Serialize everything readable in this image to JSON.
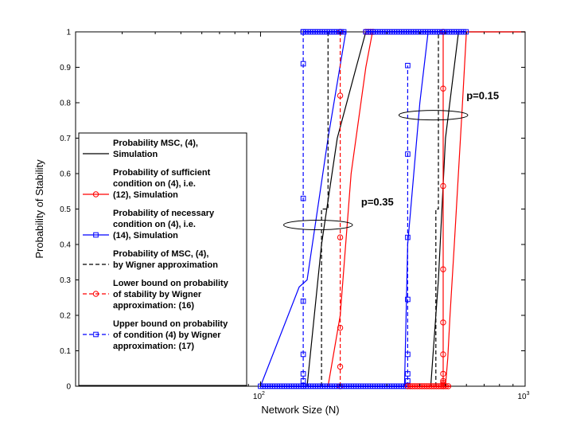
{
  "chart_data": {
    "type": "line",
    "xscale": "log",
    "xlim": [
      20,
      1000
    ],
    "ylim": [
      0,
      1
    ],
    "xlabel": "Network Size (N)",
    "ylabel": "Probability of Stability",
    "grid": false,
    "legend_position": "left",
    "x_ticks": [
      {
        "value": 100,
        "base": "10",
        "exp": "2"
      },
      {
        "value": 1000,
        "base": "10",
        "exp": "3"
      }
    ],
    "y_ticks": [
      {
        "value": 0,
        "label": "0"
      },
      {
        "value": 0.1,
        "label": "0.1"
      },
      {
        "value": 0.2,
        "label": "0.2"
      },
      {
        "value": 0.3,
        "label": "0.3"
      },
      {
        "value": 0.4,
        "label": "0.4"
      },
      {
        "value": 0.5,
        "label": "0.5"
      },
      {
        "value": 0.6,
        "label": "0.6"
      },
      {
        "value": 0.7,
        "label": "0.7"
      },
      {
        "value": 0.8,
        "label": "0.8"
      },
      {
        "value": 0.9,
        "label": "0.9"
      },
      {
        "value": 1,
        "label": "1"
      }
    ],
    "annotations": [
      {
        "text": "p=0.35",
        "x": 240,
        "y": 0.51
      },
      {
        "text": "p=0.15",
        "x": 600,
        "y": 0.81
      }
    ],
    "ellipses": [
      {
        "cx": 165,
        "cy": 0.455,
        "rx_decades": 0.13,
        "ry": 0.012
      },
      {
        "cx": 450,
        "cy": 0.765,
        "rx_decades": 0.13,
        "ry": 0.012
      }
    ],
    "series": [
      {
        "name": "Probability MSC, (4), Simulation",
        "color": "#000000",
        "dash": "solid",
        "marker": "none",
        "groups": [
          {
            "x": [
              100,
              150,
              170,
              195,
              230,
              250
            ],
            "y": [
              0,
              0,
              0.4,
              0.7,
              0.9,
              1
            ]
          },
          {
            "x": [
              300,
              440,
              470,
              500,
              560,
              1000
            ],
            "y": [
              0,
              0,
              0.3,
              0.7,
              1,
              1
            ]
          }
        ]
      },
      {
        "name": "Probability of sufficient condition on (4), i.e. (12), Simulation",
        "color": "#ff0000",
        "dash": "solid",
        "marker": "circle",
        "groups": [
          {
            "x": [
              100,
              180,
              200,
              220,
              250,
              265
            ],
            "y": [
              0,
              0,
              0.2,
              0.6,
              0.9,
              1
            ]
          },
          {
            "x": [
              300,
              500,
              510,
              520,
              540,
              580,
              600,
              1000
            ],
            "y": [
              0,
              0,
              0.08,
              0.2,
              0.4,
              0.8,
              1,
              1
            ]
          }
        ],
        "marker_x": [
          1,
          1
        ]
      },
      {
        "name": "Probability of necessary condition on (4), i.e. (14), Simulation",
        "color": "#0000ff",
        "dash": "solid",
        "marker": "square",
        "groups": [
          {
            "x": [
              100,
              140,
              150,
              180,
              210
            ],
            "y": [
              0,
              0.28,
              0.3,
              0.7,
              1
            ]
          },
          {
            "x": [
              300,
              350,
              360,
              400,
              430
            ],
            "y": [
              0,
              0,
              0.4,
              0.8,
              1
            ]
          }
        ]
      },
      {
        "name": "Probability of MSC, (4), by Wigner approximation",
        "color": "#000000",
        "dash": "dashed",
        "marker": "none",
        "groups": [
          {
            "x": [
              170,
              170,
              180,
              180
            ],
            "y": [
              0,
              0.5,
              0.5,
              1
            ]
          },
          {
            "x": [
              460,
              460,
              470,
              470
            ],
            "y": [
              0,
              0.5,
              0.5,
              1
            ]
          }
        ]
      },
      {
        "name": "Lower bound on probability of stability by Wigner approximation: (16)",
        "color": "#ff0000",
        "dash": "dashed",
        "marker": "circle",
        "groups": [
          {
            "x": [
              200,
              200,
              200,
              200,
              200,
              200
            ],
            "y": [
              0,
              0.055,
              0.165,
              0.42,
              0.82,
              1
            ]
          },
          {
            "x": [
              490,
              490,
              490,
              490,
              490,
              490,
              490,
              490,
              490,
              490,
              490
            ],
            "y": [
              0,
              0.035,
              0.09,
              0.18,
              0.33,
              0.565,
              0.84,
              1,
              0.015,
              0.005,
              0.01
            ]
          }
        ]
      },
      {
        "name": "Upper bound on probability of condition (4) by Wigner approximation: (17)",
        "color": "#0000ff",
        "dash": "dashed",
        "marker": "square",
        "groups": [
          {
            "x": [
              145,
              145,
              145,
              145,
              145,
              145,
              145,
              145
            ],
            "y": [
              0,
              0.015,
              0.035,
              0.09,
              0.24,
              0.53,
              0.91,
              1
            ]
          },
          {
            "x": [
              360,
              360,
              360,
              360,
              360,
              360,
              360,
              360
            ],
            "y": [
              0,
              0.015,
              0.035,
              0.09,
              0.245,
              0.42,
              0.655,
              0.905
            ]
          }
        ]
      }
    ],
    "baseline_markers": [
      {
        "color": "#0000ff",
        "marker": "square",
        "y": 0,
        "x_from": 100,
        "x_to": 360
      },
      {
        "color": "#ff0000",
        "marker": "circle",
        "y": 0,
        "x_from": 360,
        "x_to": 520
      },
      {
        "color": "#0000ff",
        "marker": "square",
        "y": 1,
        "x_from": 145,
        "x_to": 210
      },
      {
        "color": "#ff0000",
        "marker": "circle",
        "y": 1,
        "x_from": 250,
        "x_to": 270
      },
      {
        "color": "#0000ff",
        "marker": "square",
        "y": 1,
        "x_from": 250,
        "x_to": 600
      }
    ]
  }
}
